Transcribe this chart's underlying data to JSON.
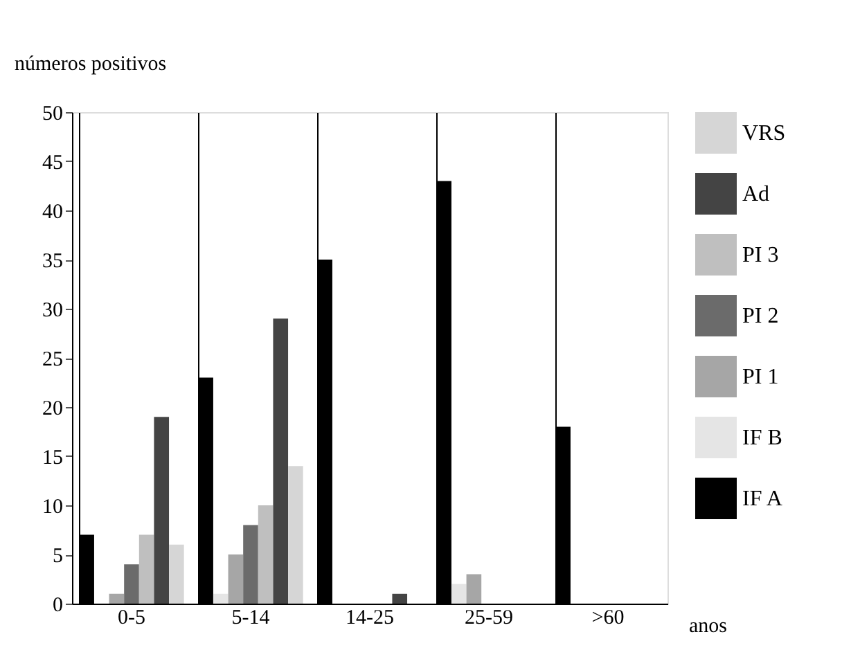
{
  "chart_data": {
    "type": "bar",
    "ylabel": "números positivos",
    "xlabel": "anos",
    "categories": [
      "0-5",
      "5-14",
      "14-25",
      "25-59",
      ">60"
    ],
    "series": [
      {
        "name": "IF A",
        "color": "#000000",
        "values": [
          7,
          23,
          35,
          43,
          18
        ]
      },
      {
        "name": "IF B",
        "color": "#e5e5e5",
        "values": [
          0,
          1,
          0,
          2,
          0
        ]
      },
      {
        "name": "PI 1",
        "color": "#a6a6a6",
        "values": [
          1,
          5,
          0,
          3,
          0
        ]
      },
      {
        "name": "PI 2",
        "color": "#6b6b6b",
        "values": [
          4,
          8,
          0,
          0,
          0
        ]
      },
      {
        "name": "PI 3",
        "color": "#bfbfbf",
        "values": [
          7,
          10,
          0,
          0,
          0
        ]
      },
      {
        "name": "Ad",
        "color": "#444444",
        "values": [
          19,
          29,
          1,
          0,
          0
        ]
      },
      {
        "name": "VRS",
        "color": "#d6d6d6",
        "values": [
          6,
          14,
          0,
          0,
          0
        ]
      }
    ],
    "ylim": [
      0,
      50
    ],
    "yticks": [
      0,
      5,
      10,
      15,
      20,
      25,
      30,
      35,
      40,
      45,
      50
    ],
    "grid": "x",
    "legend": "right"
  }
}
